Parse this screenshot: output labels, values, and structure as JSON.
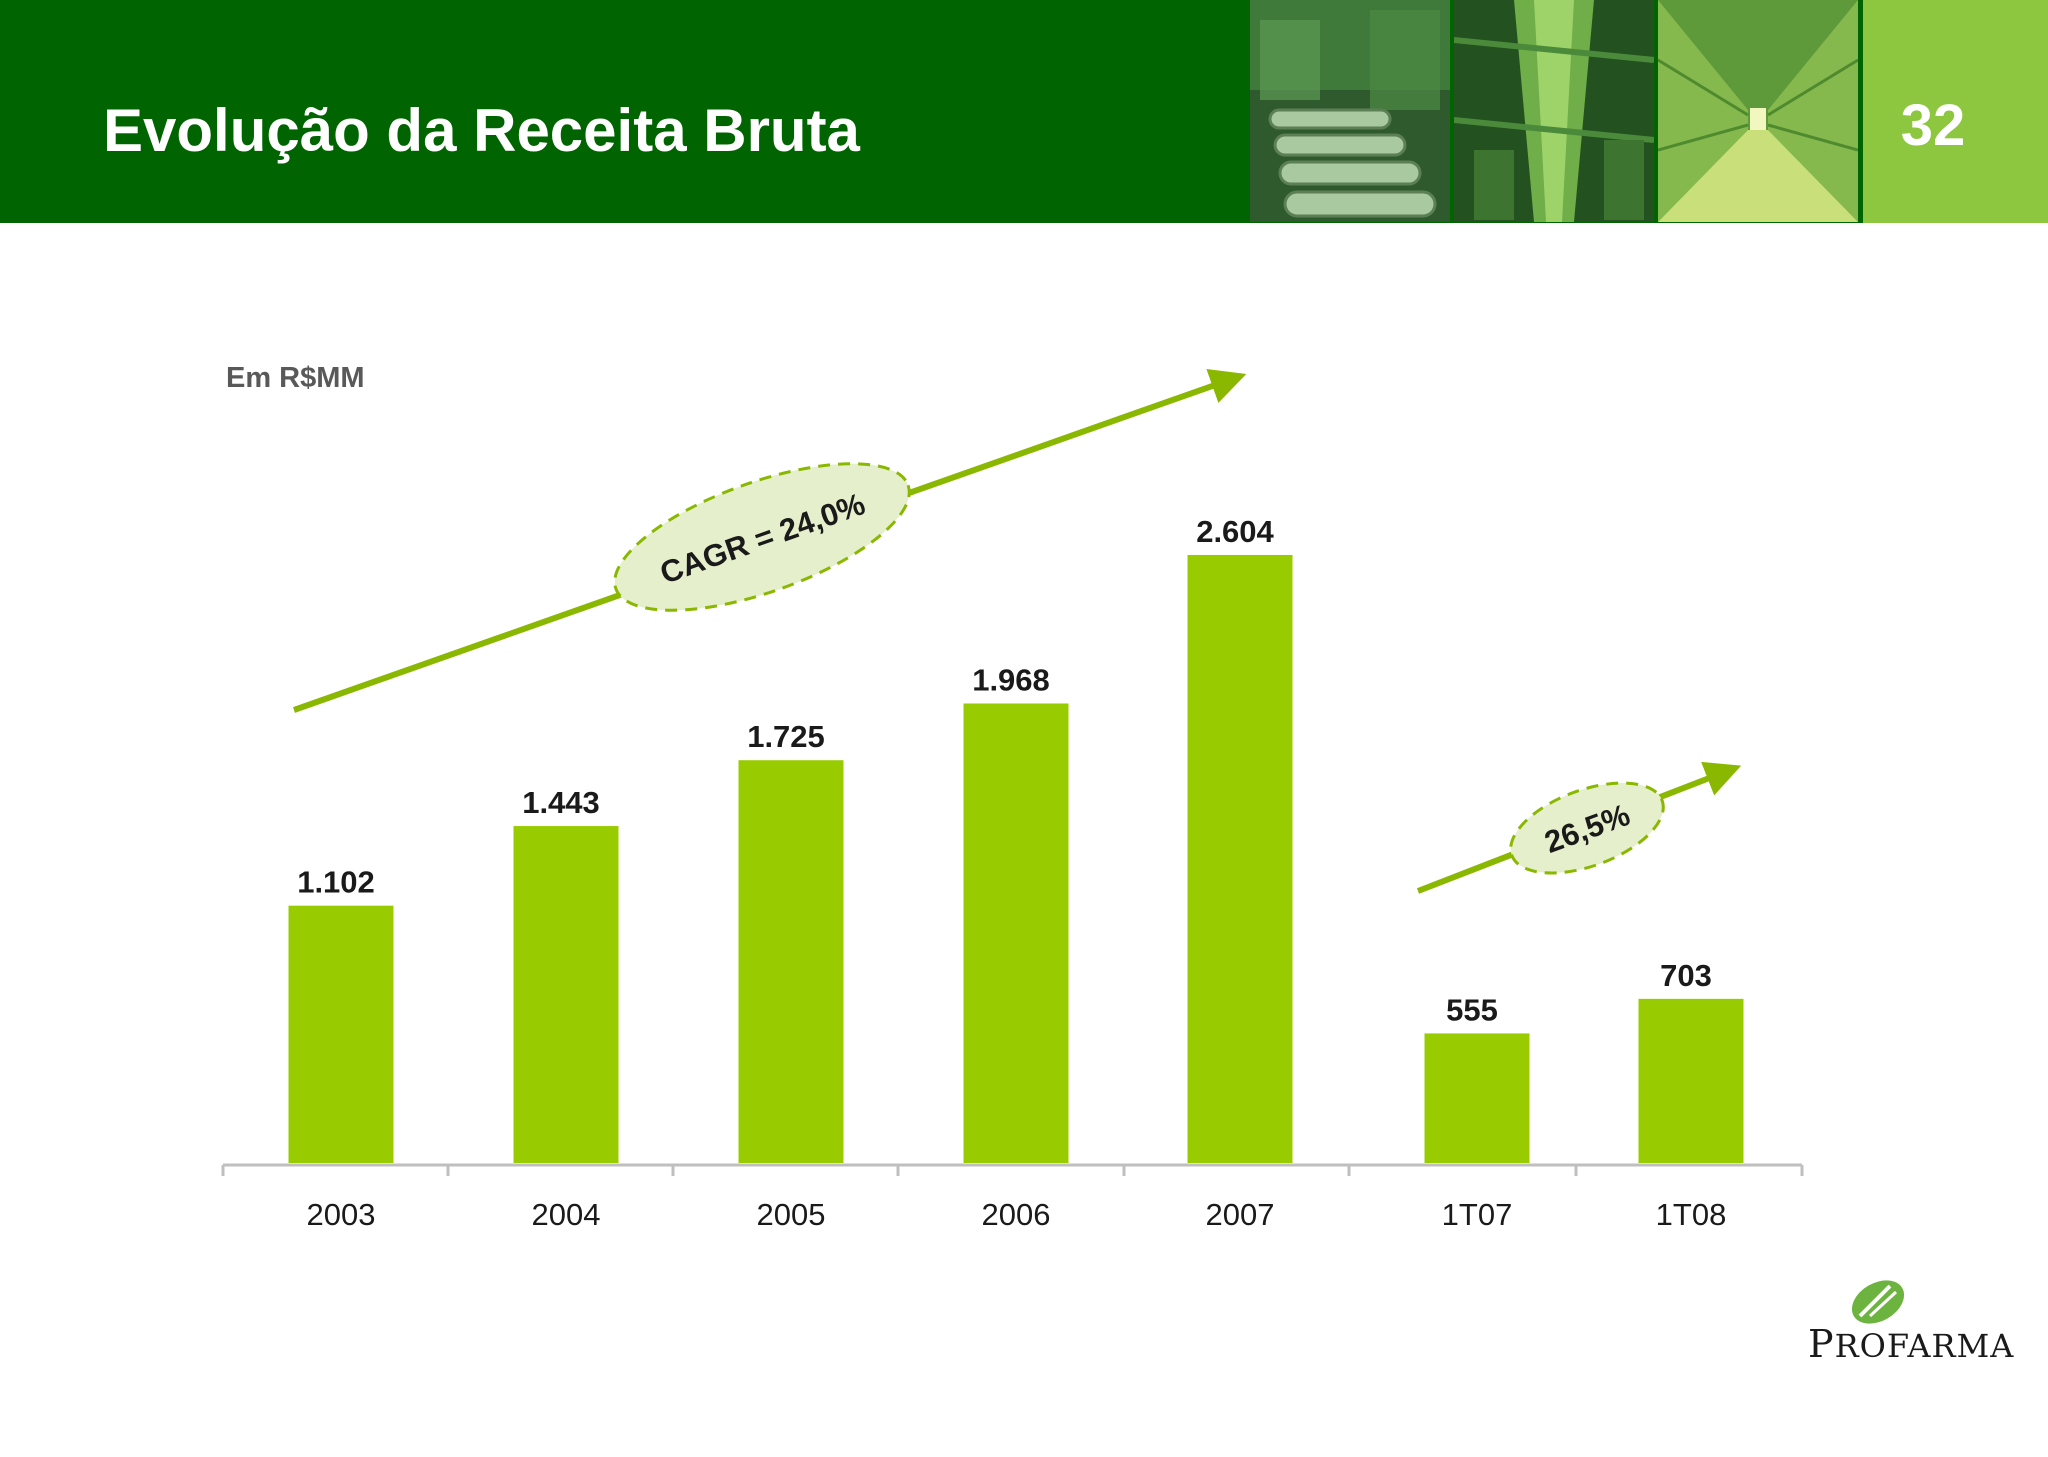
{
  "slide": {
    "title": "Evolução da Receita Bruta",
    "page_number": "32"
  },
  "brand": {
    "name_initial": "P",
    "name_rest": "ROFARMA"
  },
  "colors": {
    "header": "#006400",
    "accent": "#8dc63f",
    "bar": "#99cc00",
    "ellipse_fill": "#e6efcc",
    "ellipse_stroke": "#8ab800"
  },
  "chart_data": {
    "type": "bar",
    "unit_label": "Em R$MM",
    "categories": [
      "2003",
      "2004",
      "2005",
      "2006",
      "2007",
      "1T07",
      "1T08"
    ],
    "values": [
      1102,
      1443,
      1725,
      1968,
      2604,
      555,
      703
    ],
    "value_labels": [
      "1.102",
      "1.443",
      "1.725",
      "1.968",
      "2.604",
      "555",
      "703"
    ],
    "grid": false,
    "annotations": [
      {
        "text": "CAGR = 24,0%",
        "applies_to": [
          "2003",
          "2004",
          "2005",
          "2006",
          "2007"
        ]
      },
      {
        "text": "26,5%",
        "applies_to": [
          "1T07",
          "1T08"
        ]
      }
    ]
  }
}
